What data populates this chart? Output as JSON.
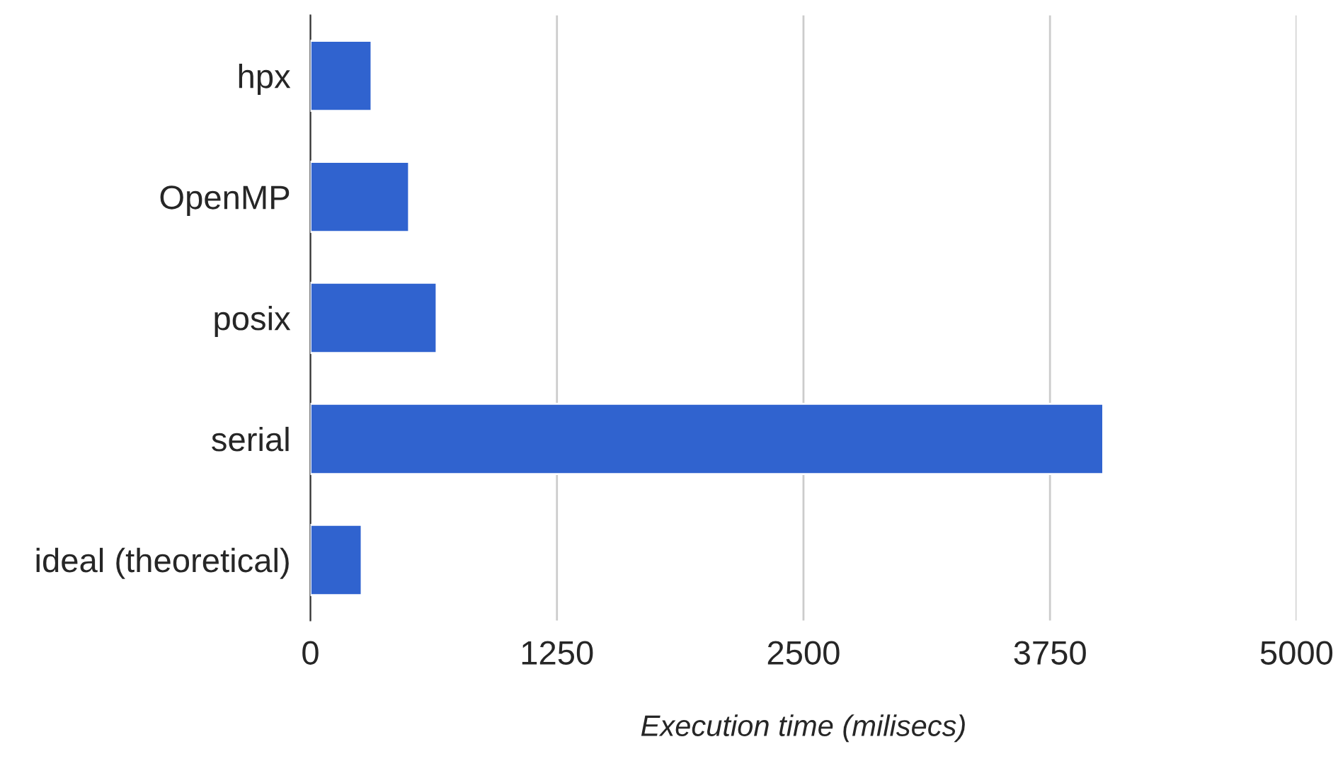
{
  "chart_data": {
    "type": "bar",
    "orientation": "horizontal",
    "categories": [
      "hpx",
      "OpenMP",
      "posix",
      "serial",
      "ideal (theoretical)"
    ],
    "values": [
      310,
      500,
      640,
      4020,
      260
    ],
    "color": "#3063cf",
    "xlim": [
      0,
      5000
    ],
    "xticks": [
      0,
      1250,
      2500,
      3750,
      5000
    ],
    "xlabel": "Execution time (milisecs)",
    "grid": "x"
  }
}
